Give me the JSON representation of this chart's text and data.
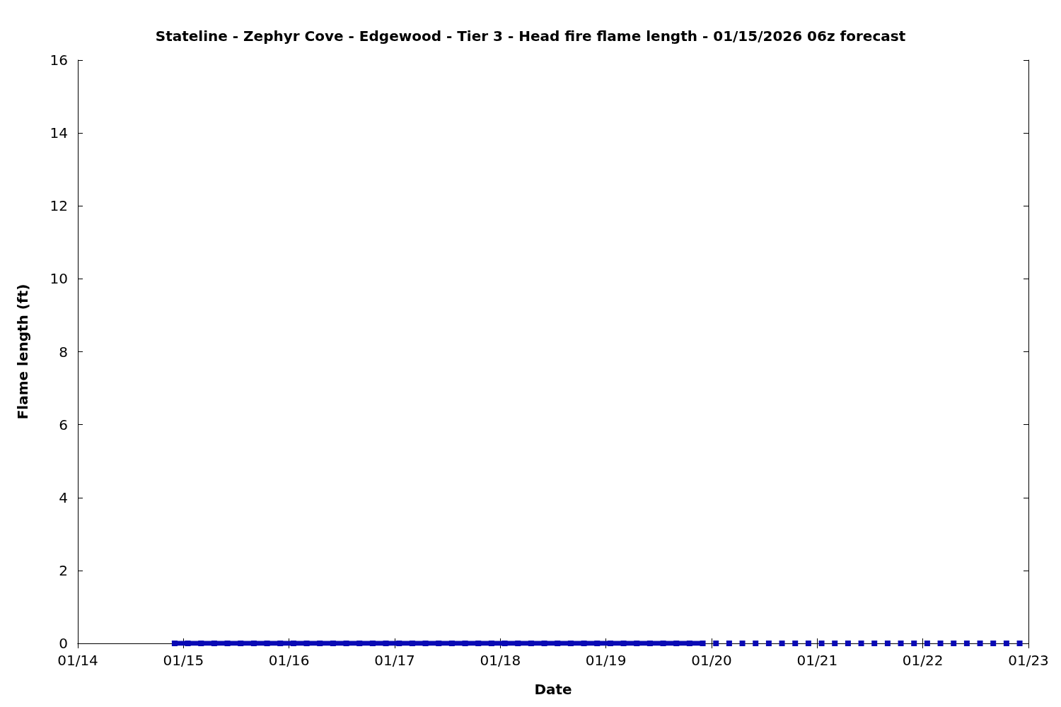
{
  "chart_data": {
    "type": "line",
    "title": "Stateline - Zephyr Cove - Edgewood - Tier 3 - Head fire flame length - 01/15/2026 06z forecast",
    "xlabel": "Date",
    "ylabel": "Flame length (ft)",
    "marker": "square",
    "grid": false,
    "xlim": [
      "2026-01-14",
      "2026-01-23"
    ],
    "xticks": [
      {
        "value": "2026-01-14",
        "label": "01/14"
      },
      {
        "value": "2026-01-15",
        "label": "01/15"
      },
      {
        "value": "2026-01-16",
        "label": "01/16"
      },
      {
        "value": "2026-01-17",
        "label": "01/17"
      },
      {
        "value": "2026-01-18",
        "label": "01/18"
      },
      {
        "value": "2026-01-19",
        "label": "01/19"
      },
      {
        "value": "2026-01-20",
        "label": "01/20"
      },
      {
        "value": "2026-01-21",
        "label": "01/21"
      },
      {
        "value": "2026-01-22",
        "label": "01/22"
      },
      {
        "value": "2026-01-23",
        "label": "01/23"
      }
    ],
    "ylim": [
      0,
      16
    ],
    "yticks": [
      0,
      2,
      4,
      6,
      8,
      10,
      12,
      14,
      16
    ],
    "series": [
      {
        "line_style": "solid",
        "color": "#0a0ab4",
        "x": [
          "2026-01-14T22:00",
          "2026-01-15T01:00",
          "2026-01-15T04:00",
          "2026-01-15T07:00",
          "2026-01-15T10:00",
          "2026-01-15T13:00",
          "2026-01-15T16:00",
          "2026-01-15T19:00",
          "2026-01-15T22:00",
          "2026-01-16T01:00",
          "2026-01-16T04:00",
          "2026-01-16T07:00",
          "2026-01-16T10:00",
          "2026-01-16T13:00",
          "2026-01-16T16:00",
          "2026-01-16T19:00",
          "2026-01-16T22:00",
          "2026-01-17T01:00",
          "2026-01-17T04:00",
          "2026-01-17T07:00",
          "2026-01-17T10:00",
          "2026-01-17T13:00",
          "2026-01-17T16:00",
          "2026-01-17T19:00",
          "2026-01-17T22:00",
          "2026-01-18T01:00",
          "2026-01-18T04:00",
          "2026-01-18T07:00",
          "2026-01-18T10:00",
          "2026-01-18T13:00",
          "2026-01-18T16:00",
          "2026-01-18T19:00",
          "2026-01-18T22:00",
          "2026-01-19T01:00",
          "2026-01-19T04:00",
          "2026-01-19T07:00",
          "2026-01-19T10:00",
          "2026-01-19T13:00",
          "2026-01-19T16:00",
          "2026-01-19T19:00",
          "2026-01-19T22:00"
        ],
        "values": [
          0,
          0,
          0,
          0,
          0,
          0,
          0,
          0,
          0,
          0,
          0,
          0,
          0,
          0,
          0,
          0,
          0,
          0,
          0,
          0,
          0,
          0,
          0,
          0,
          0,
          0,
          0,
          0,
          0,
          0,
          0,
          0,
          0,
          0,
          0,
          0,
          0,
          0,
          0,
          0,
          0
        ]
      },
      {
        "type": "scatter",
        "color": "#0a0ab4",
        "x": [
          "2026-01-20T01:00",
          "2026-01-20T04:00",
          "2026-01-20T07:00",
          "2026-01-20T10:00",
          "2026-01-20T13:00",
          "2026-01-20T16:00",
          "2026-01-20T19:00",
          "2026-01-20T22:00",
          "2026-01-21T01:00",
          "2026-01-21T04:00",
          "2026-01-21T07:00",
          "2026-01-21T10:00",
          "2026-01-21T13:00",
          "2026-01-21T16:00",
          "2026-01-21T19:00",
          "2026-01-21T22:00",
          "2026-01-22T01:00",
          "2026-01-22T04:00",
          "2026-01-22T07:00",
          "2026-01-22T10:00",
          "2026-01-22T13:00",
          "2026-01-22T16:00",
          "2026-01-22T19:00",
          "2026-01-22T22:00"
        ],
        "values": [
          0,
          0,
          0,
          0,
          0,
          0,
          0,
          0,
          0,
          0,
          0,
          0,
          0,
          0,
          0,
          0,
          0,
          0,
          0,
          0,
          0,
          0,
          0,
          0
        ]
      }
    ]
  }
}
